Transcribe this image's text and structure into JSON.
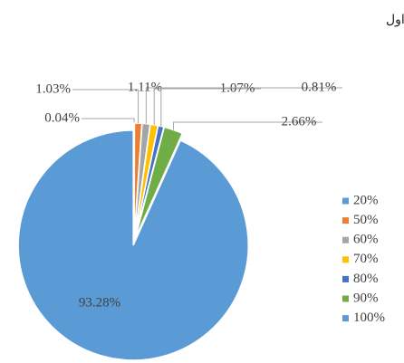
{
  "chart_data": {
    "type": "pie",
    "title": "درصد پلاک‌ها با حداکثر تکرار کاربری برای هدف اول",
    "categories": [
      "20%",
      "50%",
      "60%",
      "70%",
      "80%",
      "90%",
      "100%"
    ],
    "values": [
      0.04,
      1.03,
      1.11,
      1.07,
      0.81,
      2.66,
      93.28
    ],
    "value_labels": [
      "0.04%",
      "1.03%",
      "1.11%",
      "1.07%",
      "0.81%",
      "2.66%",
      "93.28%"
    ],
    "colors": [
      "#5b9bd5",
      "#ed7d31",
      "#a5a5a5",
      "#ffc000",
      "#4472c4",
      "#70ad47",
      "#5b9bd5"
    ],
    "legend": "right"
  }
}
